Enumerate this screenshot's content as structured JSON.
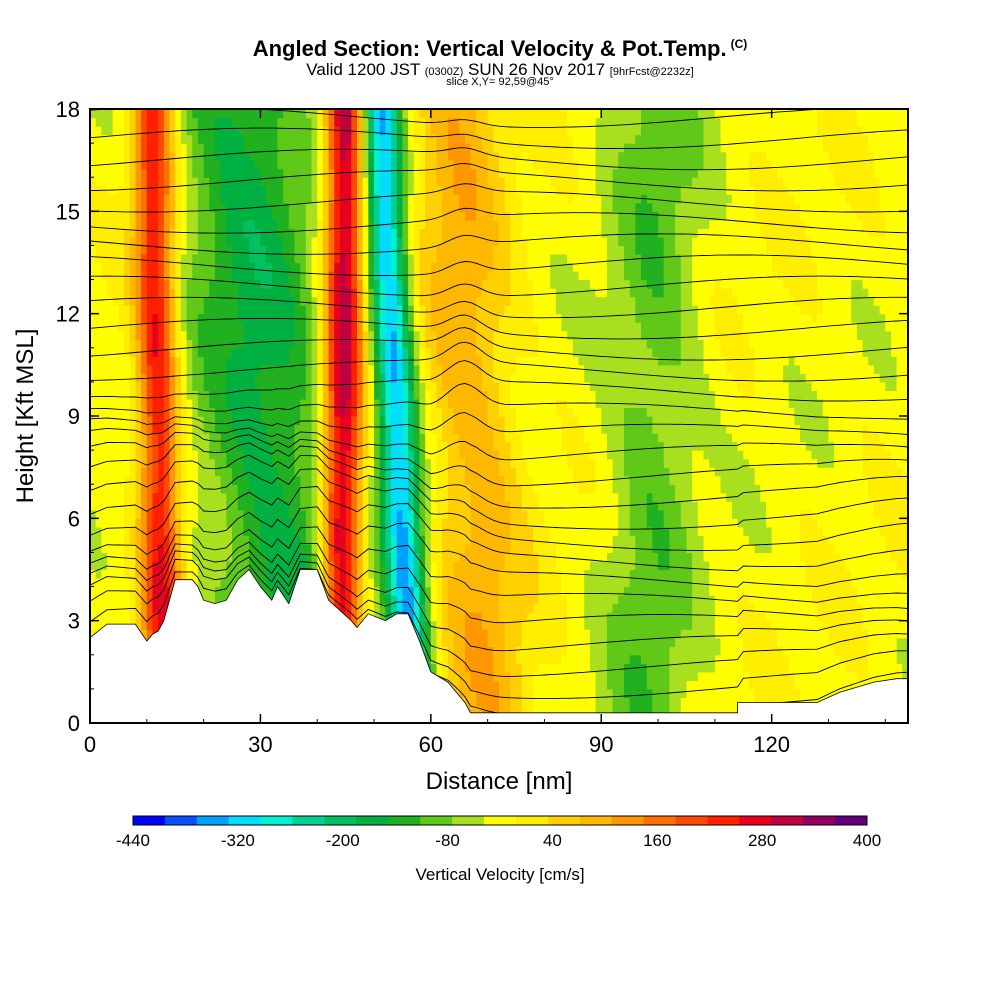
{
  "title": {
    "main": "Angled Section: Vertical Velocity & Pot.Temp.",
    "main_tag": "(C)",
    "valid_prefix": "Valid 1200 JST",
    "valid_zulu": "(0300Z)",
    "valid_date": "SUN 26 Nov 2017",
    "forecast": "[9hrFcst@2232z]",
    "slice": "slice X,Y= 92,59@45°"
  },
  "colors": {
    "strong_up": "#6a0a8a",
    "up_red": "#e02010",
    "up_orange": "#f5a010",
    "near_zero": "#ffff00",
    "down_light_green": "#a8e020",
    "down_green": "#20b030",
    "down_cyan": "#20e8e8",
    "terrain": "#ffffff"
  },
  "chart_data": {
    "type": "heatmap",
    "xlabel": "Distance [nm]",
    "ylabel": "Height [Kft MSL]",
    "xlim": [
      0,
      144
    ],
    "ylim": [
      0,
      18
    ],
    "xticks": [
      0,
      30,
      60,
      90,
      120
    ],
    "yticks": [
      0,
      3,
      6,
      9,
      12,
      15,
      18
    ],
    "field": "Vertical Velocity",
    "contour_field": "Potential Temperature",
    "colorbar": {
      "title": "Vertical Velocity [cm/s]",
      "min": -440,
      "max": 400,
      "step": 40,
      "tick_labels": [
        "-440",
        "-320",
        "-200",
        "-80",
        "40",
        "160",
        "280",
        "400"
      ],
      "colors": [
        "#0000ff",
        "#0a50ff",
        "#00a0ff",
        "#00ddff",
        "#00f0d0",
        "#00d090",
        "#00c060",
        "#00b040",
        "#20b020",
        "#60c818",
        "#a8e020",
        "#ffff00",
        "#ffee00",
        "#ffd000",
        "#ffb800",
        "#ff9800",
        "#ff7000",
        "#ff4800",
        "#ff2000",
        "#e80020",
        "#c00040",
        "#900060",
        "#600080"
      ]
    },
    "bands": [
      {
        "x_top": 11,
        "x_bottom": 13,
        "width": 3.5,
        "value": 300
      },
      {
        "x_top": 26,
        "x_bottom": 36,
        "width": 12,
        "value": -160
      },
      {
        "x_top": 45,
        "x_bottom": 44,
        "width": 3.5,
        "value": 380
      },
      {
        "x_top": 51,
        "x_bottom": 57,
        "width": 3.5,
        "value": -350
      },
      {
        "x_top": 64,
        "x_bottom": 70,
        "width": 8,
        "value": 120
      },
      {
        "x_top": 100,
        "x_bottom": 98,
        "width": 8,
        "value": -90
      }
    ],
    "terrain": [
      [
        0,
        2.5
      ],
      [
        3,
        2.9
      ],
      [
        8,
        2.9
      ],
      [
        10,
        2.4
      ],
      [
        11,
        2.6
      ],
      [
        12,
        2.7
      ],
      [
        13,
        3.0
      ],
      [
        14,
        3.6
      ],
      [
        15,
        4.2
      ],
      [
        18,
        4.2
      ],
      [
        19,
        4.0
      ],
      [
        20,
        3.6
      ],
      [
        22,
        3.5
      ],
      [
        24,
        3.6
      ],
      [
        26,
        4.2
      ],
      [
        28,
        4.5
      ],
      [
        30,
        4.0
      ],
      [
        32,
        3.6
      ],
      [
        33,
        4.0
      ],
      [
        35,
        3.5
      ],
      [
        36,
        4.0
      ],
      [
        37,
        4.5
      ],
      [
        40,
        4.5
      ],
      [
        42,
        3.6
      ],
      [
        44,
        3.3
      ],
      [
        46,
        3.0
      ],
      [
        47,
        2.8
      ],
      [
        49,
        3.2
      ],
      [
        52,
        3.0
      ],
      [
        54,
        3.2
      ],
      [
        56,
        3.2
      ],
      [
        58,
        2.4
      ],
      [
        60,
        1.5
      ],
      [
        63,
        1.2
      ],
      [
        66,
        0.6
      ],
      [
        67,
        0.3
      ],
      [
        68,
        0.3
      ],
      [
        71,
        0.3
      ],
      [
        85,
        0.3
      ],
      [
        99,
        0.3
      ],
      [
        114,
        0.3
      ],
      [
        114,
        0.6
      ],
      [
        128,
        0.6
      ],
      [
        132,
        0.9
      ],
      [
        138,
        1.2
      ],
      [
        142,
        1.3
      ],
      [
        144,
        1.3
      ]
    ]
  }
}
